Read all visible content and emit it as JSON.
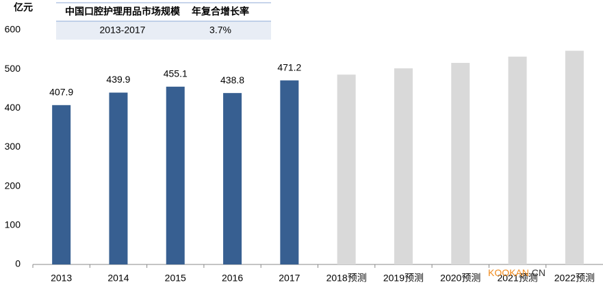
{
  "chart_data": {
    "type": "bar",
    "y_unit": "亿元",
    "categories": [
      "2013",
      "2014",
      "2015",
      "2016",
      "2017",
      "2018预测",
      "2019预测",
      "2020预测",
      "2021预测",
      "2022预测"
    ],
    "values": [
      407.9,
      439.9,
      455.1,
      438.8,
      471.2,
      486,
      502,
      516,
      532,
      547
    ],
    "colors": [
      "#375f91",
      "#375f91",
      "#375f91",
      "#375f91",
      "#375f91",
      "#d9d9d9",
      "#d9d9d9",
      "#d9d9d9",
      "#d9d9d9",
      "#d9d9d9"
    ],
    "data_labels": [
      true,
      true,
      true,
      true,
      true,
      false,
      false,
      false,
      false,
      false
    ],
    "ylim": [
      0,
      600
    ],
    "yticks": [
      0,
      100,
      200,
      300,
      400,
      500,
      600
    ],
    "grid": false,
    "table": {
      "columns": [
        "中国口腔护理用品市场规模",
        "年复合增长率"
      ],
      "rows": [
        [
          "2013-2017",
          "3.7%"
        ]
      ]
    },
    "watermark": [
      "KOOKAN",
      ".CN"
    ]
  }
}
